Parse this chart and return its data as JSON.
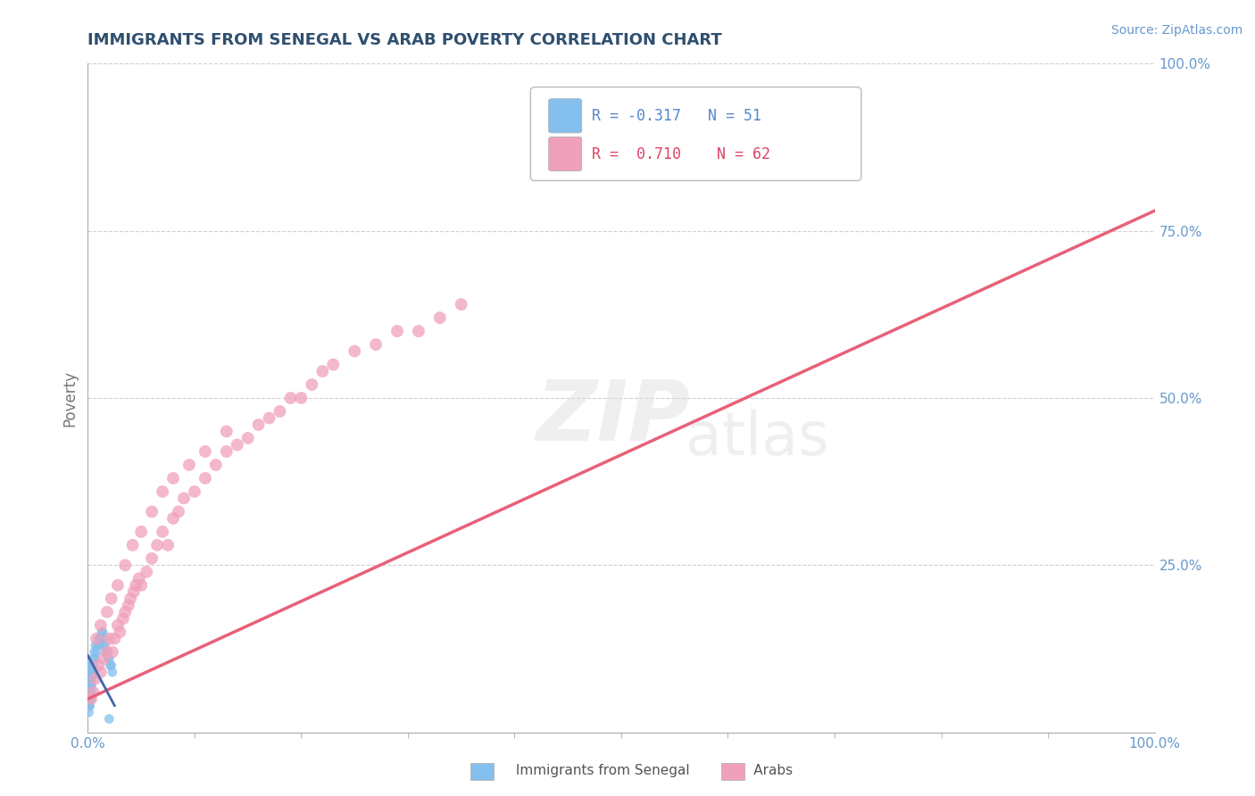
{
  "title": "IMMIGRANTS FROM SENEGAL VS ARAB POVERTY CORRELATION CHART",
  "source": "Source: ZipAtlas.com",
  "ylabel": "Poverty",
  "watermark_top": "ZIP",
  "watermark_bot": "atlas",
  "xlim": [
    0,
    1
  ],
  "ylim": [
    0,
    1
  ],
  "ytick_labels": [
    "25.0%",
    "50.0%",
    "75.0%",
    "100.0%"
  ],
  "ytick_positions": [
    0.25,
    0.5,
    0.75,
    1.0
  ],
  "legend_R_blue": "-0.317",
  "legend_N_blue": "51",
  "legend_R_pink": "0.710",
  "legend_N_pink": "62",
  "blue_color": "#85BFED",
  "pink_color": "#F0A0BB",
  "trend_blue_color": "#4466AA",
  "trend_pink_color": "#E8607A",
  "title_color": "#2F4F6F",
  "background_color": "#FFFFFF",
  "grid_color": "#BBBBBB",
  "blue_scatter_x": [
    0.001,
    0.001,
    0.001,
    0.001,
    0.002,
    0.002,
    0.002,
    0.002,
    0.002,
    0.003,
    0.003,
    0.003,
    0.003,
    0.004,
    0.004,
    0.004,
    0.005,
    0.005,
    0.006,
    0.006,
    0.007,
    0.007,
    0.008,
    0.009,
    0.01,
    0.01,
    0.011,
    0.012,
    0.013,
    0.014,
    0.015,
    0.015,
    0.016,
    0.017,
    0.018,
    0.019,
    0.02,
    0.021,
    0.022,
    0.023,
    0.001,
    0.001,
    0.001,
    0.001,
    0.002,
    0.002,
    0.002,
    0.003,
    0.003,
    0.004,
    0.02
  ],
  "blue_scatter_y": [
    0.05,
    0.06,
    0.07,
    0.08,
    0.06,
    0.07,
    0.08,
    0.09,
    0.1,
    0.07,
    0.08,
    0.09,
    0.1,
    0.08,
    0.09,
    0.1,
    0.09,
    0.11,
    0.1,
    0.12,
    0.11,
    0.13,
    0.12,
    0.13,
    0.13,
    0.14,
    0.14,
    0.14,
    0.15,
    0.15,
    0.14,
    0.13,
    0.13,
    0.12,
    0.12,
    0.11,
    0.11,
    0.1,
    0.1,
    0.09,
    0.03,
    0.04,
    0.05,
    0.04,
    0.05,
    0.04,
    0.06,
    0.05,
    0.07,
    0.06,
    0.02
  ],
  "pink_scatter_x": [
    0.003,
    0.005,
    0.007,
    0.01,
    0.012,
    0.015,
    0.018,
    0.02,
    0.023,
    0.025,
    0.028,
    0.03,
    0.033,
    0.035,
    0.038,
    0.04,
    0.043,
    0.045,
    0.048,
    0.05,
    0.055,
    0.06,
    0.065,
    0.07,
    0.075,
    0.08,
    0.085,
    0.09,
    0.1,
    0.11,
    0.12,
    0.13,
    0.14,
    0.15,
    0.16,
    0.17,
    0.18,
    0.19,
    0.2,
    0.21,
    0.22,
    0.23,
    0.25,
    0.27,
    0.29,
    0.31,
    0.33,
    0.35,
    0.008,
    0.012,
    0.018,
    0.022,
    0.028,
    0.035,
    0.042,
    0.05,
    0.06,
    0.07,
    0.08,
    0.095,
    0.11,
    0.13
  ],
  "pink_scatter_y": [
    0.05,
    0.06,
    0.08,
    0.1,
    0.09,
    0.11,
    0.12,
    0.14,
    0.12,
    0.14,
    0.16,
    0.15,
    0.17,
    0.18,
    0.19,
    0.2,
    0.21,
    0.22,
    0.23,
    0.22,
    0.24,
    0.26,
    0.28,
    0.3,
    0.28,
    0.32,
    0.33,
    0.35,
    0.36,
    0.38,
    0.4,
    0.42,
    0.43,
    0.44,
    0.46,
    0.47,
    0.48,
    0.5,
    0.5,
    0.52,
    0.54,
    0.55,
    0.57,
    0.58,
    0.6,
    0.6,
    0.62,
    0.64,
    0.14,
    0.16,
    0.18,
    0.2,
    0.22,
    0.25,
    0.28,
    0.3,
    0.33,
    0.36,
    0.38,
    0.4,
    0.42,
    0.45
  ],
  "pink_trend_x0": 0.0,
  "pink_trend_x1": 1.0,
  "pink_trend_y0": 0.05,
  "pink_trend_y1": 0.78,
  "blue_trend_x0": 0.0,
  "blue_trend_x1": 0.025,
  "blue_trend_y0": 0.115,
  "blue_trend_y1": 0.04
}
